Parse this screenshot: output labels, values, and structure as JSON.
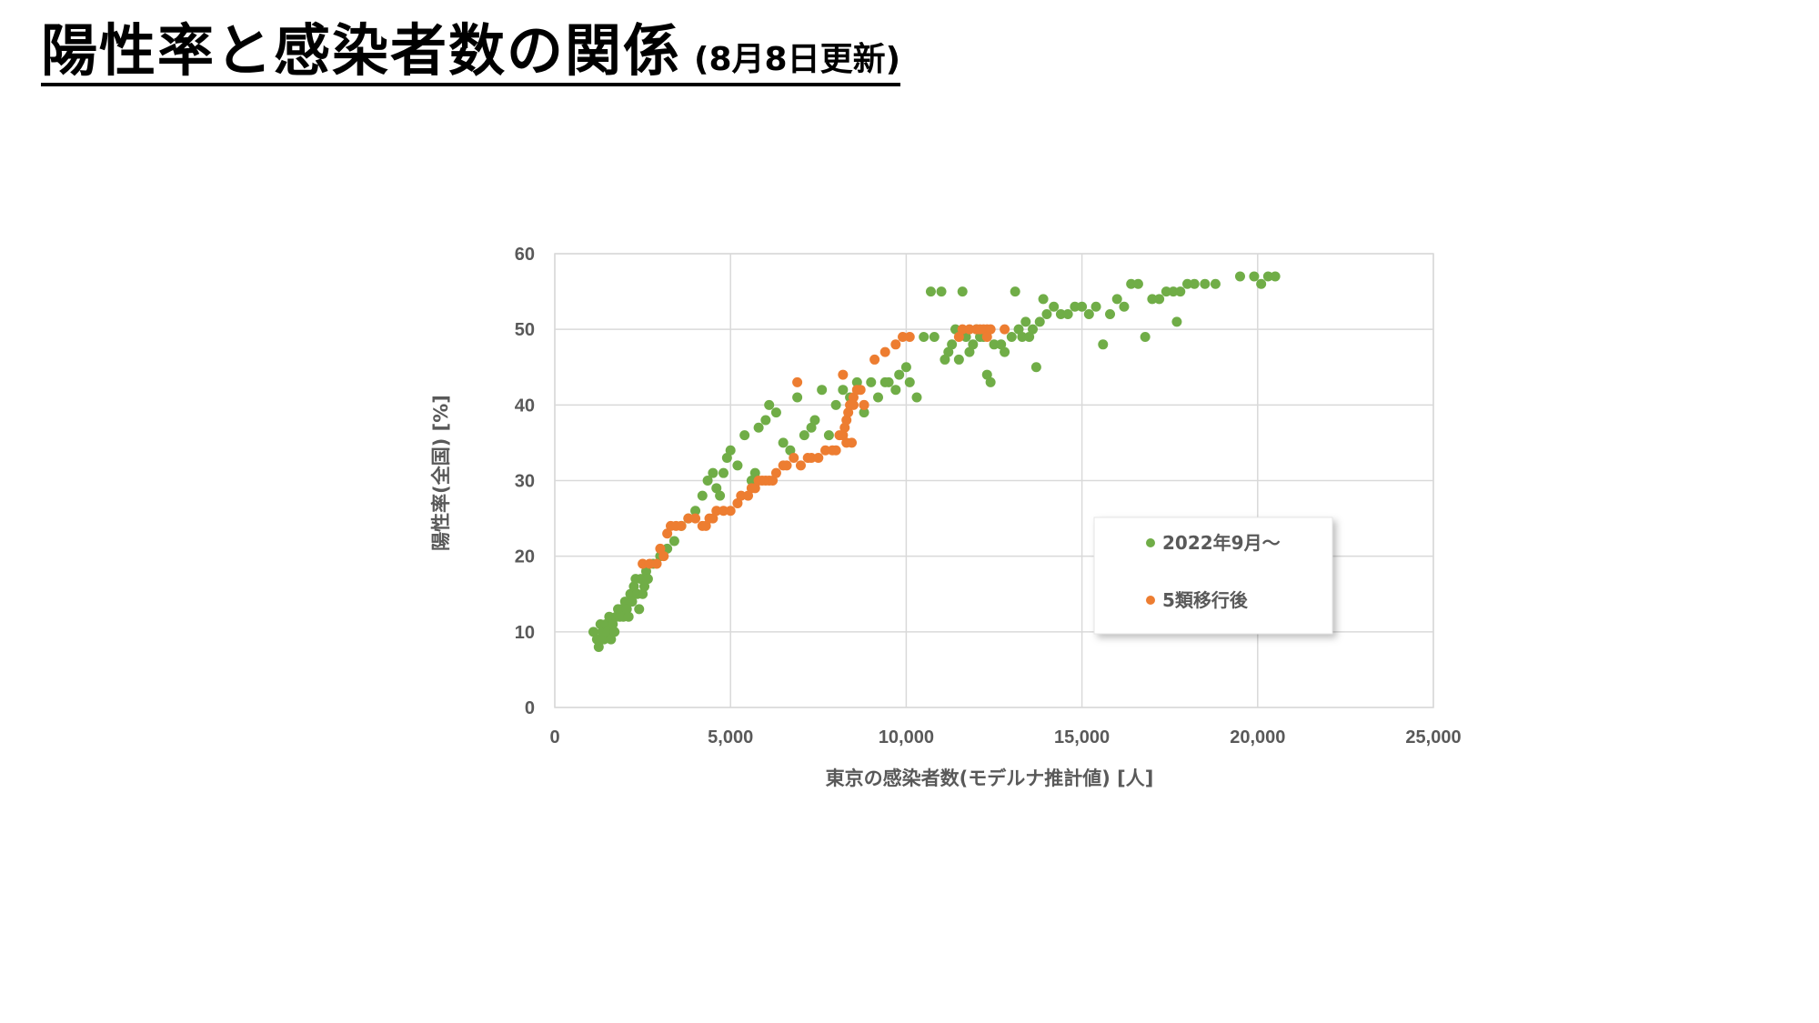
{
  "header": {
    "title": "陽性率と感染者数の関係",
    "subtitle": "(8月8日更新)"
  },
  "colors": {
    "series_1": "#70ad47",
    "series_2": "#ed7d31",
    "grid": "#d9d9d9",
    "text": "#595959"
  },
  "chart_data": {
    "type": "scatter",
    "xlabel": "東京の感染者数(モデルナ推計値) [人]",
    "ylabel": "陽性率(全国) [%]",
    "xlim": [
      0,
      25000
    ],
    "ylim": [
      0,
      60
    ],
    "x_ticks": [
      "0",
      "5,000",
      "10,000",
      "15,000",
      "20,000",
      "25,000"
    ],
    "y_ticks": [
      "0",
      "10",
      "20",
      "30",
      "40",
      "50",
      "60"
    ],
    "grid": true,
    "legend_position": "right",
    "series": [
      {
        "name": "2022年9月～",
        "color": "#70ad47",
        "points": [
          [
            1100,
            10
          ],
          [
            1200,
            9
          ],
          [
            1250,
            8
          ],
          [
            1300,
            11
          ],
          [
            1350,
            10
          ],
          [
            1400,
            9
          ],
          [
            1450,
            11
          ],
          [
            1500,
            10
          ],
          [
            1550,
            12
          ],
          [
            1600,
            9
          ],
          [
            1650,
            11
          ],
          [
            1700,
            10
          ],
          [
            1750,
            12
          ],
          [
            1800,
            13
          ],
          [
            1850,
            12
          ],
          [
            1900,
            13
          ],
          [
            1950,
            12
          ],
          [
            2000,
            14
          ],
          [
            2050,
            13
          ],
          [
            2100,
            12
          ],
          [
            2150,
            15
          ],
          [
            2200,
            14
          ],
          [
            2250,
            16
          ],
          [
            2300,
            17
          ],
          [
            2350,
            15
          ],
          [
            2400,
            13
          ],
          [
            2450,
            17
          ],
          [
            2500,
            15
          ],
          [
            2550,
            16
          ],
          [
            2600,
            18
          ],
          [
            2650,
            17
          ],
          [
            2800,
            19
          ],
          [
            3000,
            20
          ],
          [
            3200,
            21
          ],
          [
            3400,
            22
          ],
          [
            3600,
            24
          ],
          [
            3800,
            25
          ],
          [
            4000,
            26
          ],
          [
            4200,
            28
          ],
          [
            4350,
            30
          ],
          [
            4500,
            31
          ],
          [
            4600,
            29
          ],
          [
            4700,
            28
          ],
          [
            4800,
            31
          ],
          [
            4900,
            33
          ],
          [
            5000,
            34
          ],
          [
            5200,
            32
          ],
          [
            5400,
            36
          ],
          [
            5600,
            30
          ],
          [
            5700,
            31
          ],
          [
            5800,
            37
          ],
          [
            6000,
            38
          ],
          [
            6100,
            40
          ],
          [
            6300,
            39
          ],
          [
            6500,
            35
          ],
          [
            6700,
            34
          ],
          [
            6900,
            41
          ],
          [
            7100,
            36
          ],
          [
            7300,
            37
          ],
          [
            7400,
            38
          ],
          [
            7600,
            42
          ],
          [
            7800,
            36
          ],
          [
            8000,
            40
          ],
          [
            8200,
            42
          ],
          [
            8400,
            41
          ],
          [
            8600,
            43
          ],
          [
            8800,
            39
          ],
          [
            9000,
            43
          ],
          [
            9200,
            41
          ],
          [
            9400,
            43
          ],
          [
            9500,
            43
          ],
          [
            9700,
            42
          ],
          [
            9800,
            44
          ],
          [
            10000,
            45
          ],
          [
            10100,
            43
          ],
          [
            10300,
            41
          ],
          [
            10500,
            49
          ],
          [
            10700,
            55
          ],
          [
            10800,
            49
          ],
          [
            11000,
            55
          ],
          [
            11100,
            46
          ],
          [
            11200,
            47
          ],
          [
            11300,
            48
          ],
          [
            11400,
            50
          ],
          [
            11500,
            46
          ],
          [
            11600,
            55
          ],
          [
            11700,
            49
          ],
          [
            11800,
            47
          ],
          [
            11900,
            48
          ],
          [
            12000,
            50
          ],
          [
            12100,
            49
          ],
          [
            12200,
            49
          ],
          [
            12300,
            44
          ],
          [
            12400,
            43
          ],
          [
            12500,
            48
          ],
          [
            12700,
            48
          ],
          [
            12800,
            47
          ],
          [
            13000,
            49
          ],
          [
            13100,
            55
          ],
          [
            13200,
            50
          ],
          [
            13300,
            49
          ],
          [
            13400,
            51
          ],
          [
            13500,
            49
          ],
          [
            13600,
            50
          ],
          [
            13700,
            45
          ],
          [
            13800,
            51
          ],
          [
            13900,
            54
          ],
          [
            14000,
            52
          ],
          [
            14200,
            53
          ],
          [
            14400,
            52
          ],
          [
            14600,
            52
          ],
          [
            14800,
            53
          ],
          [
            15000,
            53
          ],
          [
            15200,
            52
          ],
          [
            15400,
            53
          ],
          [
            15600,
            48
          ],
          [
            15800,
            52
          ],
          [
            16000,
            54
          ],
          [
            16200,
            53
          ],
          [
            16400,
            56
          ],
          [
            16600,
            56
          ],
          [
            16800,
            49
          ],
          [
            17000,
            54
          ],
          [
            17200,
            54
          ],
          [
            17400,
            55
          ],
          [
            17600,
            55
          ],
          [
            17700,
            51
          ],
          [
            17800,
            55
          ],
          [
            18000,
            56
          ],
          [
            18200,
            56
          ],
          [
            18500,
            56
          ],
          [
            18800,
            56
          ],
          [
            19500,
            57
          ],
          [
            19900,
            57
          ],
          [
            20100,
            56
          ],
          [
            20300,
            57
          ],
          [
            20500,
            57
          ]
        ]
      },
      {
        "name": "5類移行後",
        "color": "#ed7d31",
        "points": [
          [
            2500,
            19
          ],
          [
            2700,
            19
          ],
          [
            2900,
            19
          ],
          [
            3000,
            21
          ],
          [
            3100,
            20
          ],
          [
            3200,
            23
          ],
          [
            3300,
            24
          ],
          [
            3450,
            24
          ],
          [
            3600,
            24
          ],
          [
            3800,
            25
          ],
          [
            4000,
            25
          ],
          [
            4200,
            24
          ],
          [
            4300,
            24
          ],
          [
            4400,
            25
          ],
          [
            4500,
            25
          ],
          [
            4600,
            26
          ],
          [
            4800,
            26
          ],
          [
            5000,
            26
          ],
          [
            5200,
            27
          ],
          [
            5300,
            28
          ],
          [
            5500,
            28
          ],
          [
            5600,
            29
          ],
          [
            5700,
            29
          ],
          [
            5800,
            30
          ],
          [
            5900,
            30
          ],
          [
            6000,
            30
          ],
          [
            6100,
            30
          ],
          [
            6200,
            30
          ],
          [
            6300,
            31
          ],
          [
            6500,
            32
          ],
          [
            6600,
            32
          ],
          [
            6800,
            33
          ],
          [
            6900,
            43
          ],
          [
            7000,
            32
          ],
          [
            7200,
            33
          ],
          [
            7300,
            33
          ],
          [
            7500,
            33
          ],
          [
            7700,
            34
          ],
          [
            7900,
            34
          ],
          [
            8000,
            34
          ],
          [
            8100,
            36
          ],
          [
            8200,
            36
          ],
          [
            8250,
            37
          ],
          [
            8300,
            38
          ],
          [
            8350,
            39
          ],
          [
            8400,
            40
          ],
          [
            8450,
            35
          ],
          [
            8500,
            41
          ],
          [
            8600,
            42
          ],
          [
            8700,
            42
          ],
          [
            8800,
            40
          ],
          [
            8800,
            40
          ],
          [
            9100,
            46
          ],
          [
            9400,
            47
          ],
          [
            9700,
            48
          ],
          [
            9900,
            49
          ],
          [
            10100,
            49
          ],
          [
            11500,
            49
          ],
          [
            11600,
            50
          ],
          [
            11800,
            50
          ],
          [
            12000,
            50
          ],
          [
            12100,
            50
          ],
          [
            12200,
            50
          ],
          [
            12300,
            50
          ],
          [
            12300,
            49
          ],
          [
            12400,
            50
          ],
          [
            12800,
            50
          ],
          [
            8200,
            44
          ],
          [
            8500,
            40
          ],
          [
            8300,
            35
          ]
        ]
      }
    ]
  }
}
